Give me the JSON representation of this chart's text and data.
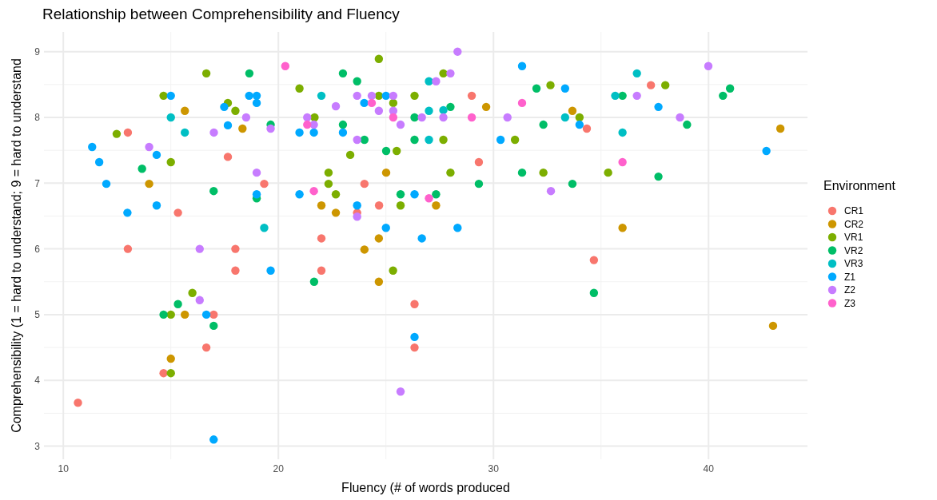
{
  "chart_data": {
    "type": "scatter",
    "title": "Relationship between Comprehensibility and Fluency",
    "xlabel": "Fluency (# of words produced",
    "ylabel": "Comprehensibility (1 = hard to understand; 9 = hard to understand",
    "legend_title": "Environment",
    "legend": "right",
    "grid": true,
    "marker": "circle",
    "xlim": [
      9.1,
      44.6
    ],
    "ylim": [
      2.8,
      9.3
    ],
    "xticks": [
      10,
      20,
      30,
      40
    ],
    "yticks": [
      3,
      4,
      5,
      6,
      7,
      8,
      9
    ],
    "series": [
      {
        "name": "CR1",
        "color": "#f8766d",
        "x": [
          10.68,
          13.0,
          13.0,
          14.66,
          15.33,
          16.65,
          16.99,
          17.65,
          18.0,
          18.0,
          19.34,
          22.0,
          22.0,
          23.66,
          24.0,
          24.68,
          26.33,
          26.33,
          28.99,
          29.32,
          34.34,
          34.67,
          37.32
        ],
        "values": [
          3.66,
          7.77,
          6.0,
          4.11,
          6.55,
          4.5,
          5.0,
          7.4,
          6.0,
          5.67,
          6.99,
          6.16,
          5.67,
          6.55,
          6.99,
          6.66,
          5.16,
          4.5,
          8.33,
          7.32,
          7.83,
          5.83,
          8.49
        ]
      },
      {
        "name": "CR2",
        "color": "#cd9600",
        "x": [
          13.99,
          15.0,
          15.65,
          15.65,
          18.33,
          22.0,
          22.67,
          24.0,
          24.67,
          24.67,
          25.01,
          27.33,
          29.66,
          33.67,
          36.0,
          43.0,
          43.34
        ],
        "values": [
          6.99,
          4.33,
          8.1,
          5.0,
          7.83,
          6.66,
          6.55,
          5.99,
          6.16,
          5.5,
          7.16,
          6.66,
          8.16,
          8.1,
          6.32,
          4.83,
          7.83
        ]
      },
      {
        "name": "VR1",
        "color": "#7cae00",
        "x": [
          12.48,
          14.66,
          15.0,
          15.0,
          15.0,
          16.0,
          16.65,
          17.65,
          18.0,
          20.98,
          21.68,
          22.33,
          22.33,
          22.67,
          23.34,
          24.67,
          24.67,
          25.33,
          25.34,
          25.5,
          25.68,
          26.33,
          27.67,
          27.67,
          28.0,
          31.0,
          32.32,
          32.65,
          34.0,
          35.33,
          37.99
        ],
        "values": [
          7.75,
          8.33,
          7.32,
          5.0,
          4.11,
          5.33,
          8.67,
          8.22,
          8.1,
          8.44,
          8.0,
          7.16,
          6.99,
          6.83,
          7.43,
          8.89,
          8.33,
          5.67,
          8.22,
          7.49,
          6.66,
          8.33,
          8.67,
          7.66,
          7.16,
          7.66,
          7.16,
          8.49,
          8.0,
          7.16,
          8.49
        ]
      },
      {
        "name": "VR2",
        "color": "#00be67",
        "x": [
          13.66,
          14.66,
          15.33,
          16.99,
          16.99,
          18.65,
          18.99,
          19.64,
          21.66,
          23.0,
          23.0,
          23.66,
          24.0,
          25.01,
          25.68,
          26.33,
          26.33,
          27.33,
          28.0,
          29.32,
          31.33,
          32.0,
          32.32,
          33.67,
          34.67,
          36.0,
          37.67,
          39.0,
          40.67,
          41.0
        ],
        "values": [
          7.22,
          5.0,
          5.16,
          6.88,
          4.83,
          8.67,
          6.77,
          7.89,
          5.5,
          8.67,
          7.89,
          8.55,
          7.66,
          7.49,
          6.83,
          8.0,
          7.66,
          6.83,
          8.16,
          6.99,
          7.16,
          8.44,
          7.89,
          6.99,
          5.33,
          8.33,
          7.1,
          7.89,
          8.33,
          8.44
        ]
      },
      {
        "name": "VR3",
        "color": "#00bfc4",
        "x": [
          15.0,
          15.65,
          19.34,
          22.0,
          27.0,
          27.0,
          27.0,
          27.67,
          33.33,
          35.66,
          36.0,
          36.67
        ],
        "values": [
          8.0,
          7.77,
          6.32,
          8.33,
          8.55,
          8.1,
          7.66,
          8.11,
          8.0,
          8.33,
          7.77,
          8.67
        ]
      },
      {
        "name": "Z1",
        "color": "#00a9ff",
        "x": [
          11.34,
          11.67,
          12.0,
          12.98,
          14.34,
          14.34,
          15.0,
          16.65,
          16.99,
          17.48,
          17.65,
          18.64,
          18.99,
          18.99,
          18.99,
          19.64,
          20.98,
          20.98,
          21.65,
          23.0,
          23.66,
          23.99,
          25.0,
          25.0,
          26.33,
          26.33,
          26.67,
          28.33,
          30.33,
          31.33,
          33.33,
          34.0,
          37.67,
          42.69
        ],
        "values": [
          7.55,
          7.32,
          6.99,
          6.55,
          7.43,
          6.66,
          8.33,
          5.0,
          3.1,
          8.16,
          7.88,
          8.33,
          8.33,
          8.22,
          6.83,
          5.67,
          7.77,
          6.83,
          7.77,
          7.77,
          6.66,
          8.22,
          8.33,
          6.32,
          6.83,
          4.66,
          6.16,
          6.32,
          7.66,
          8.78,
          8.44,
          7.89,
          8.16,
          7.49
        ]
      },
      {
        "name": "Z2",
        "color": "#c77cff",
        "x": [
          13.99,
          16.34,
          16.34,
          17.0,
          18.5,
          18.99,
          19.64,
          21.34,
          21.65,
          22.67,
          23.66,
          23.66,
          23.66,
          24.34,
          24.67,
          25.34,
          25.34,
          25.68,
          25.68,
          26.67,
          27.33,
          27.67,
          28.0,
          28.33,
          30.65,
          32.67,
          36.67,
          38.67,
          39.99
        ],
        "values": [
          7.55,
          6.0,
          5.22,
          7.77,
          8.0,
          7.16,
          7.83,
          8.0,
          7.89,
          8.17,
          8.33,
          7.66,
          6.49,
          8.33,
          8.1,
          8.33,
          8.1,
          7.89,
          3.83,
          8.0,
          8.55,
          8.0,
          8.67,
          9.0,
          8.0,
          6.88,
          8.33,
          8.0,
          8.78
        ]
      },
      {
        "name": "Z3",
        "color": "#ff61cc",
        "x": [
          20.32,
          21.34,
          21.65,
          24.34,
          25.34,
          27.0,
          28.99,
          31.33,
          36.0
        ],
        "values": [
          8.78,
          7.89,
          6.88,
          8.22,
          8.0,
          6.77,
          8.0,
          8.22,
          7.32
        ]
      }
    ]
  }
}
